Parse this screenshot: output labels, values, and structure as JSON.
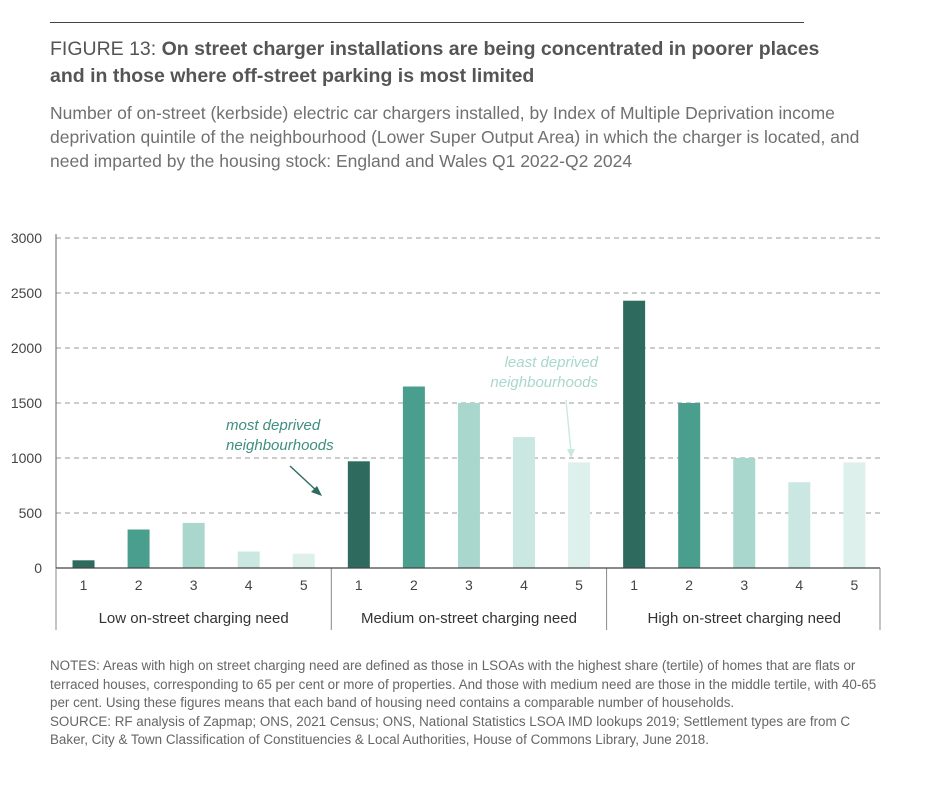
{
  "header": {
    "figure_label": "FIGURE 13: ",
    "title": "On street charger installations are being concentrated in poorer places and in those where off-street parking is most limited",
    "subtitle": "Number of on-street (kerbside) electric car chargers installed, by Index of Multiple Deprivation income deprivation quintile of the neighbourhood (Lower Super Output Area) in which the charger is located, and need imparted by the housing stock: England and Wales Q1 2022-Q2 2024"
  },
  "colors": [
    "#2e6b5e",
    "#4a9e8e",
    "#a9d7cd",
    "#cbe7e1",
    "#ddf0ec"
  ],
  "chart_data": {
    "type": "bar",
    "title": "Number of on-street electric car chargers installed by IMD income deprivation quintile and on-street charging need",
    "xlabel": "",
    "ylabel": "",
    "ylim": [
      0,
      3000
    ],
    "yticks": [
      "0",
      "500",
      "1000",
      "1500",
      "2000",
      "2500",
      "3000"
    ],
    "groups": [
      {
        "name": "Low on-street charging need",
        "categories": [
          "1",
          "2",
          "3",
          "4",
          "5"
        ],
        "values": [
          70,
          350,
          410,
          150,
          130
        ]
      },
      {
        "name": "Medium on-street charging need",
        "categories": [
          "1",
          "2",
          "3",
          "4",
          "5"
        ],
        "values": [
          970,
          1650,
          1500,
          1190,
          960
        ]
      },
      {
        "name": "High on-street charging need",
        "categories": [
          "1",
          "2",
          "3",
          "4",
          "5"
        ],
        "values": [
          2430,
          1500,
          1000,
          780,
          960
        ]
      }
    ],
    "annotations": {
      "most_deprived": [
        "most deprived",
        "neighbourhoods"
      ],
      "least_deprived": [
        "least deprived",
        "neighbourhoods"
      ]
    }
  },
  "notes": {
    "notes_text": "NOTES: Areas with high on street charging need are defined as those in LSOAs with the highest share (tertile) of homes that are flats or terraced houses, corresponding to 65 per cent or more of properties. And those with medium need are those in the middle tertile, with 40-65 per cent. Using these figures means that each band of housing need contains a comparable number of households.",
    "source_text": "SOURCE: RF analysis of Zapmap; ONS, 2021 Census; ONS, National Statistics LSOA IMD lookups 2019; Settlement types are from C Baker, City & Town Classification of Constituencies & Local Authorities, House of Commons Library, June 2018."
  }
}
